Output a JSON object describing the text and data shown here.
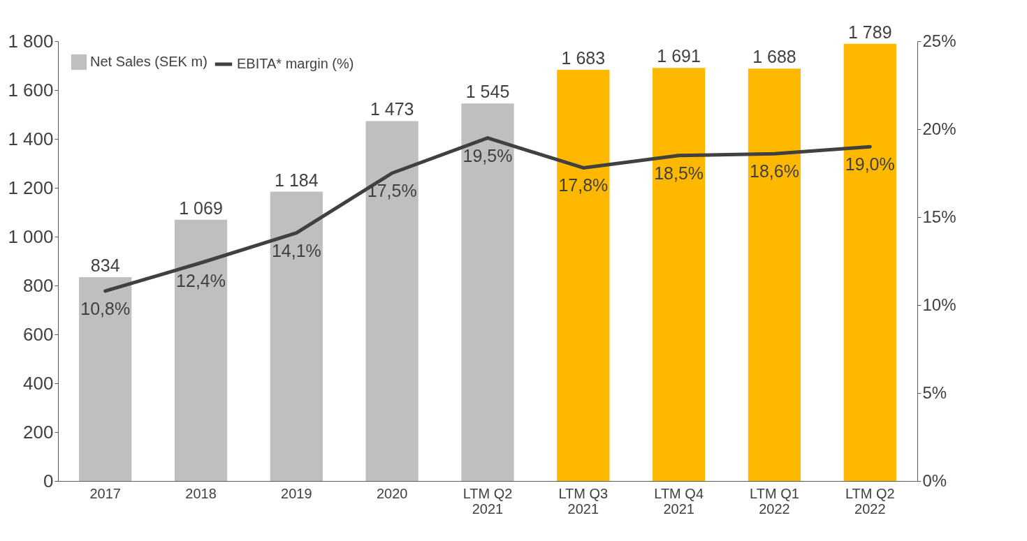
{
  "chart_data": {
    "type": "bar",
    "categories": [
      "2017",
      "2018",
      "2019",
      "2020",
      "LTM Q2\n2021",
      "LTM Q3\n2021",
      "LTM Q4\n2021",
      "LTM Q1\n2022",
      "LTM Q2\n2022"
    ],
    "series": [
      {
        "name": "Net Sales (SEK m)",
        "color": "#bfbfbf",
        "colors": [
          "#bfbfbf",
          "#bfbfbf",
          "#bfbfbf",
          "#bfbfbf",
          "#bfbfbf",
          "#ffb800",
          "#ffb800",
          "#ffb800",
          "#ffb800"
        ],
        "values": [
          834,
          1069,
          1184,
          1473,
          1545,
          1683,
          1691,
          1688,
          1789
        ],
        "value_labels": [
          "834",
          "1 069",
          "1 184",
          "1 473",
          "1 545",
          "1 683",
          "1 691",
          "1 688",
          "1 789"
        ]
      },
      {
        "name": "EBITA* margin (%)",
        "type": "line",
        "axis": "y2",
        "color": "#404040",
        "values": [
          10.8,
          12.4,
          14.1,
          17.5,
          19.5,
          17.8,
          18.5,
          18.6,
          19.0
        ],
        "value_labels": [
          "10,8%",
          "12,4%",
          "14,1%",
          "17,5%",
          "19,5%",
          "17,8%",
          "18,5%",
          "18,6%",
          "19,0%"
        ]
      }
    ],
    "ylim": [
      0,
      1800
    ],
    "yticks": [
      0,
      200,
      400,
      600,
      800,
      {
        "value": 1000,
        "label": "1 000"
      },
      {
        "value": 1200,
        "label": "1 200"
      },
      {
        "value": 1400,
        "label": "1 400"
      },
      {
        "value": 1600,
        "label": "1 600"
      },
      {
        "value": 1800,
        "label": "1 800"
      }
    ],
    "y2lim": [
      0,
      25
    ],
    "y2ticks": [
      {
        "value": 0,
        "label": "0%"
      },
      {
        "value": 5,
        "label": "5%"
      },
      {
        "value": 10,
        "label": "10%"
      },
      {
        "value": 15,
        "label": "15%"
      },
      {
        "value": 20,
        "label": "20%"
      },
      {
        "value": 25,
        "label": "25%"
      }
    ],
    "grid": false,
    "legend": "top left"
  }
}
